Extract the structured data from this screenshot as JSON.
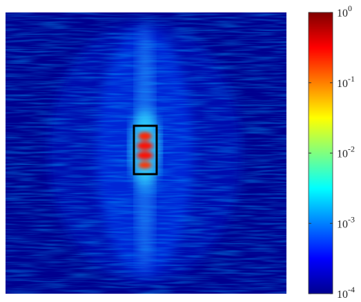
{
  "chart_data": {
    "type": "colorbar",
    "log_scale": true,
    "ylim": [
      0.0001,
      1
    ],
    "yticks": [
      {
        "value": 0.0001,
        "label": "10^-4"
      },
      {
        "value": 0.001,
        "label": "10^-3"
      },
      {
        "value": 0.01,
        "label": "10^-2"
      },
      {
        "value": 0.1,
        "label": "10^-1"
      },
      {
        "value": 1,
        "label": "10^0"
      }
    ]
  }
}
